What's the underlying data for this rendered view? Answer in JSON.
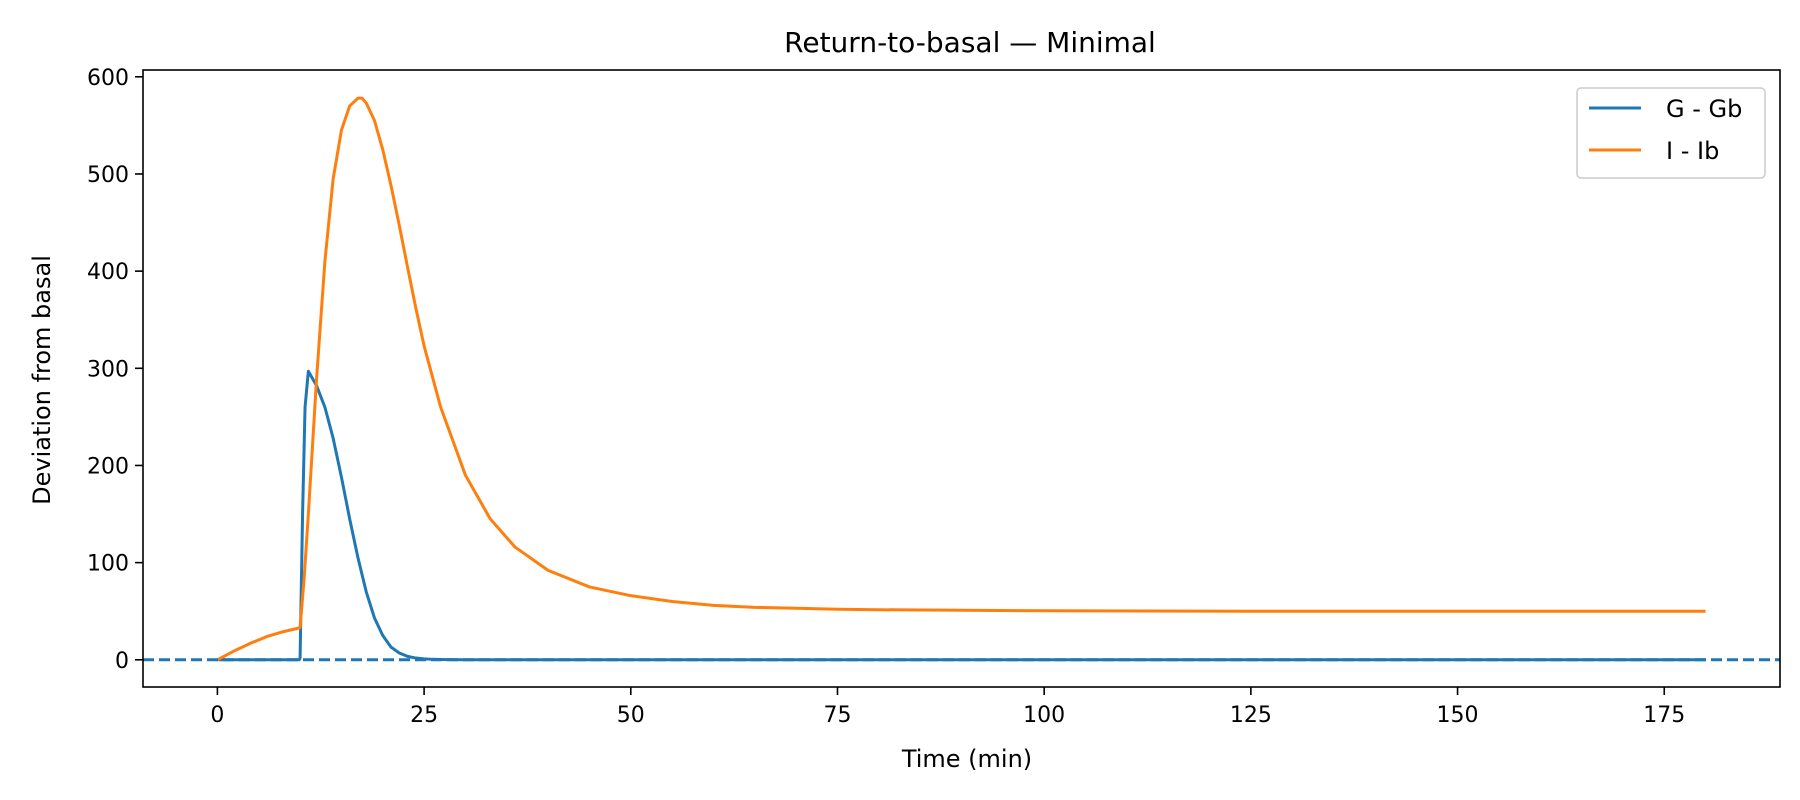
{
  "chart_data": {
    "type": "line",
    "title": "Return-to-basal — Minimal",
    "xlabel": "Time (min)",
    "ylabel": "Deviation from basal",
    "xlim": [
      -9,
      189
    ],
    "ylim": [
      -28,
      607
    ],
    "xticks": [
      0,
      25,
      50,
      75,
      100,
      125,
      150,
      175
    ],
    "yticks": [
      0,
      100,
      200,
      300,
      400,
      500,
      600
    ],
    "grid": false,
    "legend_position": "top-right",
    "reference_line": {
      "y": 0,
      "style": "dashed",
      "color": "#1f77b4"
    },
    "series": [
      {
        "name": "G - Gb",
        "color": "#1f77b4",
        "x": [
          0,
          5,
          9.9,
          10,
          10.3,
          10.6,
          11,
          12,
          13,
          14,
          15,
          16,
          17,
          18,
          19,
          20,
          21,
          22,
          23,
          24,
          25,
          26,
          27,
          28,
          30,
          35,
          40,
          50,
          75,
          100,
          125,
          150,
          180
        ],
        "y": [
          0,
          0,
          0,
          2,
          150,
          260,
          297,
          282,
          260,
          228,
          188,
          145,
          105,
          70,
          43,
          25,
          13,
          7,
          3.5,
          1.8,
          1,
          0.5,
          0.3,
          0.2,
          0.1,
          0,
          0,
          0,
          0,
          0,
          0,
          0,
          0
        ]
      },
      {
        "name": "I - Ib",
        "color": "#ff7f0e",
        "x": [
          0,
          2,
          4,
          6,
          8,
          10,
          10.5,
          11,
          12,
          13,
          14,
          15,
          16,
          17,
          17.5,
          18,
          19,
          20,
          21,
          22,
          23,
          24,
          25,
          27,
          30,
          33,
          36,
          40,
          45,
          50,
          55,
          60,
          65,
          70,
          75,
          80,
          90,
          100,
          125,
          150,
          180
        ],
        "y": [
          0,
          9,
          17,
          24,
          29,
          33,
          85,
          150,
          290,
          410,
          495,
          545,
          570,
          578,
          578,
          573,
          555,
          525,
          488,
          447,
          404,
          362,
          323,
          260,
          190,
          145,
          116,
          92,
          75,
          66,
          60,
          56,
          54,
          53,
          52,
          51.5,
          51,
          50.5,
          50,
          50,
          50
        ]
      }
    ]
  }
}
